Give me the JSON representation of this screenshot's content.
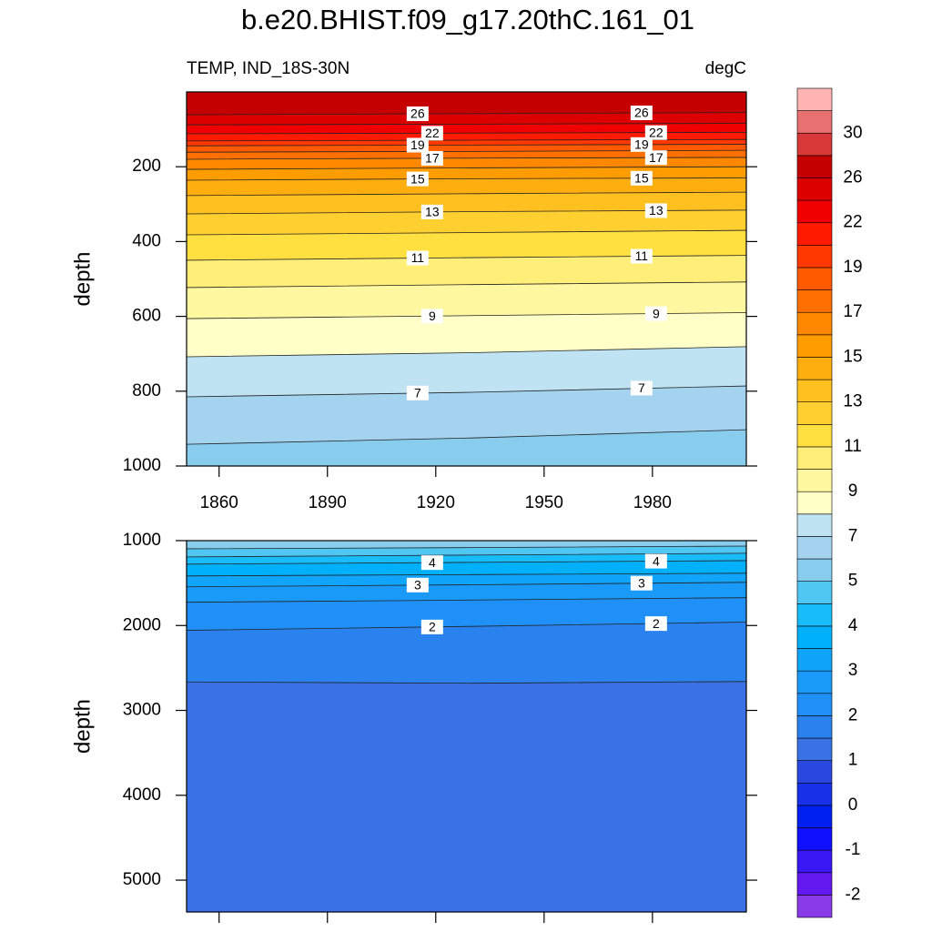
{
  "chart_data": {
    "type": "contour",
    "title": "b.e20.BHIST.f09_g17.20thC.161_01",
    "subtitle": "TEMP, IND_18S-30N",
    "units": "degC",
    "colorbar": {
      "levels": [
        -2,
        -1.5,
        -1,
        -0.5,
        0,
        0.5,
        1,
        1.5,
        2,
        2.5,
        3,
        3.5,
        4,
        4.5,
        5,
        6,
        7,
        8,
        9,
        10,
        11,
        12,
        13,
        14,
        15,
        16,
        17,
        18,
        19,
        20,
        22,
        24,
        26,
        28,
        30,
        32
      ],
      "colors": [
        "#8a3be8",
        "#6418f0",
        "#3a18f5",
        "#1010ff",
        "#0020f0",
        "#1830e8",
        "#2a48e0",
        "#3a72e6",
        "#2a82ee",
        "#1e90f8",
        "#1a9af8",
        "#10a4fa",
        "#00b0fa",
        "#18bcf8",
        "#50c6f2",
        "#88ccee",
        "#a3d3ef",
        "#bfe3f2",
        "#ffffc8",
        "#fff8a0",
        "#ffee78",
        "#ffe040",
        "#ffd030",
        "#ffc020",
        "#ffae10",
        "#ff9c00",
        "#ff8800",
        "#ff7000",
        "#ff5a00",
        "#ff3800",
        "#ff1a00",
        "#f00000",
        "#dc0000",
        "#c40000",
        "#d83838",
        "#e87070",
        "#ffb4b4"
      ],
      "ticks": [
        -2,
        -1,
        0,
        1,
        2,
        3,
        4,
        5,
        7,
        9,
        11,
        13,
        15,
        17,
        19,
        22,
        26,
        30
      ]
    },
    "panels": [
      {
        "ylabel": "depth",
        "xlim": [
          1851,
          2006
        ],
        "ylim": [
          0,
          1000
        ],
        "xticks": [
          1860,
          1890,
          1920,
          1950,
          1980
        ],
        "xtick_labels": true,
        "yticks": [
          200,
          400,
          600,
          800,
          1000
        ],
        "contours": [
          {
            "level": 26,
            "x": [
              1851,
              1930,
              2006
            ],
            "depths": [
              61,
              58,
              55
            ],
            "label": true
          },
          {
            "level": 24,
            "x": [
              1851,
              1930,
              2006
            ],
            "depths": [
              88,
              86,
              84
            ],
            "label": false
          },
          {
            "level": 22,
            "x": [
              1851,
              1930,
              2006
            ],
            "depths": [
              112,
              110,
              108
            ],
            "label": true
          },
          {
            "level": 20,
            "x": [
              1851,
              1930,
              2006
            ],
            "depths": [
              131,
              129,
              127
            ],
            "label": false
          },
          {
            "level": 19,
            "x": [
              1851,
              1930,
              2006
            ],
            "depths": [
              144,
              142,
              140
            ],
            "label": true
          },
          {
            "level": 18,
            "x": [
              1851,
              1930,
              2006
            ],
            "depths": [
              161,
              159,
              156
            ],
            "label": false
          },
          {
            "level": 17,
            "x": [
              1851,
              1930,
              2006
            ],
            "depths": [
              180,
              177,
              175
            ],
            "label": true
          },
          {
            "level": 16,
            "x": [
              1851,
              1930,
              2006
            ],
            "depths": [
              207,
              203,
              200
            ],
            "label": false
          },
          {
            "level": 15,
            "x": [
              1851,
              1930,
              2006
            ],
            "depths": [
              236,
              232,
              230
            ],
            "label": true
          },
          {
            "level": 14,
            "x": [
              1851,
              1930,
              2006
            ],
            "depths": [
              277,
              272,
              268
            ],
            "label": false
          },
          {
            "level": 13,
            "x": [
              1851,
              1930,
              2006
            ],
            "depths": [
              326,
              320,
              316
            ],
            "label": true
          },
          {
            "level": 12,
            "x": [
              1851,
              1930,
              2006
            ],
            "depths": [
              382,
              376,
              370
            ],
            "label": false
          },
          {
            "level": 11,
            "x": [
              1851,
              1930,
              2006
            ],
            "depths": [
              450,
              443,
              437
            ],
            "label": true
          },
          {
            "level": 10,
            "x": [
              1851,
              1930,
              2006
            ],
            "depths": [
              523,
              515,
              508
            ],
            "label": false
          },
          {
            "level": 9,
            "x": [
              1851,
              1930,
              2006
            ],
            "depths": [
              606,
              598,
              590
            ],
            "label": true
          },
          {
            "level": 8,
            "x": [
              1851,
              1930,
              2006
            ],
            "depths": [
              708,
              697,
              681
            ],
            "label": false
          },
          {
            "level": 7,
            "x": [
              1851,
              1930,
              2006
            ],
            "depths": [
              815,
              803,
              786
            ],
            "label": true
          },
          {
            "level": 6,
            "x": [
              1851,
              1930,
              2006
            ],
            "depths": [
              942,
              925,
              903
            ],
            "label": false
          }
        ]
      },
      {
        "ylabel": "depth",
        "xlim": [
          1851,
          2006
        ],
        "ylim": [
          1000,
          5375
        ],
        "xticks": [
          1860,
          1890,
          1920,
          1950,
          1980
        ],
        "xtick_labels": false,
        "yticks": [
          1000,
          2000,
          3000,
          4000,
          5000
        ],
        "contours": [
          {
            "level": 5,
            "x": [
              1851,
              1930,
              2006
            ],
            "depths": [
              1096,
              1082,
              1064
            ],
            "label": false
          },
          {
            "level": 4.5,
            "x": [
              1851,
              1930,
              2006
            ],
            "depths": [
              1192,
              1170,
              1149
            ],
            "label": false
          },
          {
            "level": 4,
            "x": [
              1851,
              1930,
              2006
            ],
            "depths": [
              1277,
              1256,
              1235
            ],
            "label": true
          },
          {
            "level": 3.5,
            "x": [
              1851,
              1930,
              2006
            ],
            "depths": [
              1416,
              1400,
              1384
            ],
            "label": false
          },
          {
            "level": 3,
            "x": [
              1851,
              1930,
              2006
            ],
            "depths": [
              1544,
              1520,
              1491
            ],
            "label": true
          },
          {
            "level": 2.5,
            "x": [
              1851,
              1930,
              2006
            ],
            "depths": [
              1726,
              1700,
              1672
            ],
            "label": false
          },
          {
            "level": 2,
            "x": [
              1851,
              1930,
              2006
            ],
            "depths": [
              2057,
              2010,
              1960
            ],
            "label": true
          },
          {
            "level": 1.5,
            "x": [
              1851,
              1930,
              2006
            ],
            "depths": [
              2665,
              2680,
              2660
            ],
            "label": false
          }
        ]
      }
    ]
  }
}
